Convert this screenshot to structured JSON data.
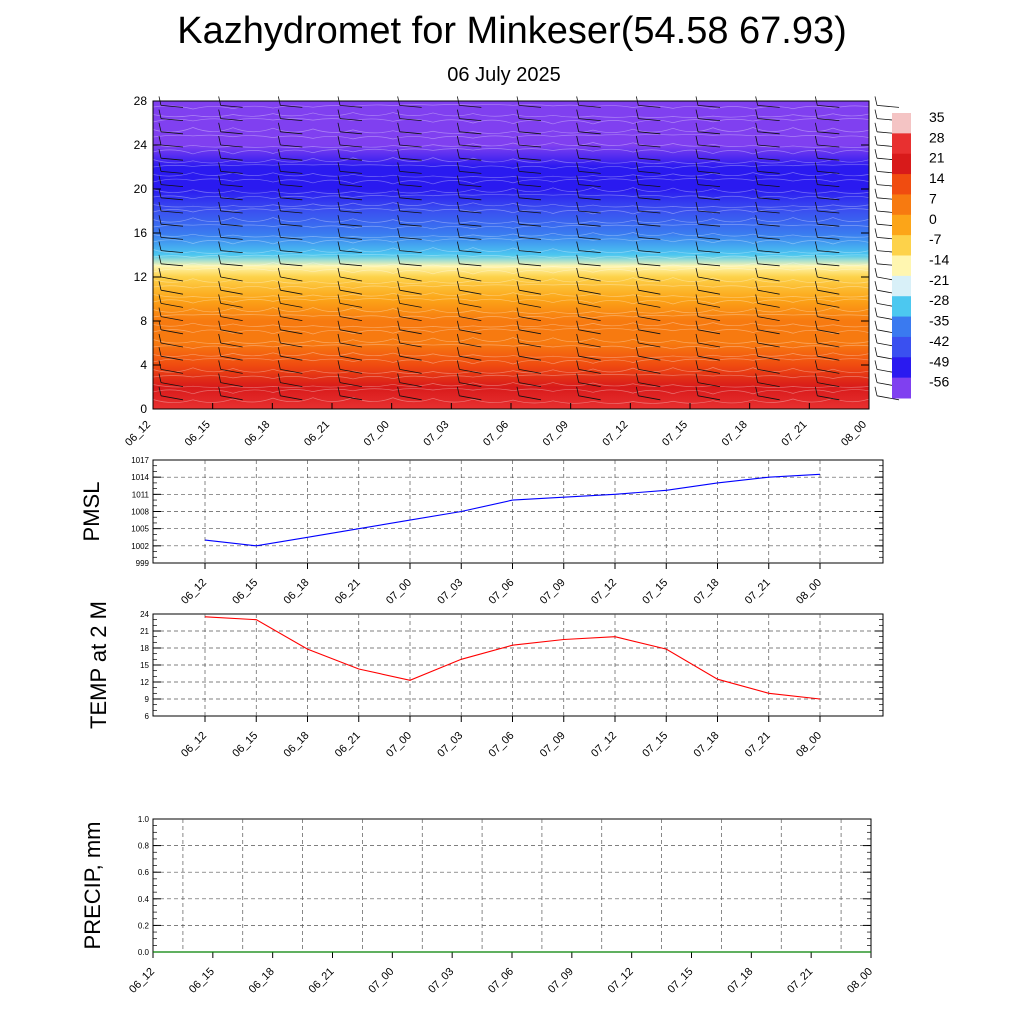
{
  "header": {
    "title": "Kazhydromet for Minkeser(54.58 67.93)",
    "date": "06 July 2025"
  },
  "chart_data": [
    {
      "type": "heatmap",
      "name": "upper-air-section",
      "title": "",
      "xlabel": "",
      "ylabel": "",
      "x_ticks": [
        "06_12",
        "06_15",
        "06_18",
        "06_21",
        "07_00",
        "07_03",
        "07_06",
        "07_09",
        "07_12",
        "07_15",
        "07_18",
        "07_21",
        "08_00"
      ],
      "y_ticks": [
        0,
        4,
        8,
        12,
        16,
        20,
        24,
        28
      ],
      "ylim": [
        0,
        28
      ],
      "wind_barbs": true,
      "colorbar": {
        "labels": [
          35,
          28,
          21,
          14,
          7,
          0,
          -7,
          -14,
          -21,
          -28,
          -35,
          -42,
          -49,
          -56
        ],
        "colors": [
          "#f4c4c4",
          "#e83030",
          "#d81a1a",
          "#f04c10",
          "#f77a10",
          "#fca518",
          "#fdd24a",
          "#fff6b0",
          "#d8f0f8",
          "#4cc8f0",
          "#3a7af0",
          "#3a50f0",
          "#2a1af0",
          "#8040f0"
        ]
      },
      "levels": [
        0,
        2,
        4,
        6,
        8,
        10,
        12,
        13,
        14,
        16,
        18,
        20,
        22,
        24,
        26,
        28
      ],
      "level_values": [
        28,
        21,
        14,
        10,
        5,
        0,
        -8,
        -15,
        -28,
        -35,
        -42,
        -49,
        -52,
        -56,
        -58,
        -60
      ]
    },
    {
      "type": "line",
      "name": "pmsl",
      "title": "",
      "xlabel": "",
      "ylabel": "PMSL",
      "x": [
        "06_12",
        "06_15",
        "06_18",
        "06_21",
        "07_00",
        "07_03",
        "07_06",
        "07_09",
        "07_12",
        "07_15",
        "07_18",
        "07_21",
        "08_00"
      ],
      "series": [
        {
          "values": [
            1003,
            1002,
            1003.5,
            1005,
            1006.5,
            1008,
            1010,
            1010.5,
            1011,
            1011.7,
            1013,
            1014,
            1014.5
          ]
        }
      ],
      "y_ticks": [
        999,
        1002,
        1005,
        1008,
        1011,
        1014,
        1017
      ],
      "ylim": [
        999,
        1017
      ],
      "grid": true,
      "color": "#0000ff"
    },
    {
      "type": "line",
      "name": "temp-2m",
      "title": "",
      "xlabel": "",
      "ylabel": "TEMP at 2 M",
      "x": [
        "06_12",
        "06_15",
        "06_18",
        "06_21",
        "07_00",
        "07_03",
        "07_06",
        "07_09",
        "07_12",
        "07_15",
        "07_18",
        "07_21",
        "08_00"
      ],
      "series": [
        {
          "values": [
            23.5,
            23,
            17.8,
            14.3,
            12.3,
            16,
            18.5,
            19.5,
            20,
            17.8,
            12.5,
            10,
            9
          ]
        }
      ],
      "y_ticks": [
        6,
        9,
        12,
        15,
        18,
        21,
        24
      ],
      "ylim": [
        6,
        24
      ],
      "grid": true,
      "color": "#ff0000"
    },
    {
      "type": "line",
      "name": "precip",
      "title": "",
      "xlabel": "",
      "ylabel": "PRECIP, mm",
      "x": [
        "06_12",
        "06_15",
        "06_18",
        "06_21",
        "07_00",
        "07_03",
        "07_06",
        "07_09",
        "07_12",
        "07_15",
        "07_18",
        "07_21",
        "08_00"
      ],
      "series": [
        {
          "values": [
            0,
            0,
            0,
            0,
            0,
            0,
            0,
            0,
            0,
            0,
            0,
            0,
            0
          ]
        }
      ],
      "y_ticks": [
        0.0,
        0.2,
        0.4,
        0.6,
        0.8,
        1.0
      ],
      "y_tick_labels": [
        "0.0",
        "0.2",
        "0.4",
        "0.6",
        "0.8",
        "1.0"
      ],
      "ylim": [
        0,
        1
      ],
      "grid": true,
      "color": "#008000"
    }
  ]
}
